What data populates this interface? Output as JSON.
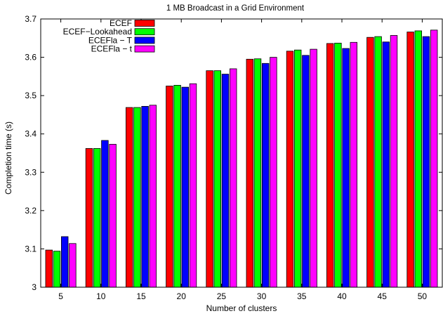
{
  "chart_data": {
    "type": "bar",
    "title": "1 MB Broadcast in a Grid Environment",
    "xlabel": "Number of clusters",
    "ylabel": "Completion time (s)",
    "ylim": [
      3.0,
      3.7
    ],
    "yticks": [
      "3",
      "3.1",
      "3.2",
      "3.3",
      "3.4",
      "3.5",
      "3.6",
      "3.7"
    ],
    "categories": [
      "5",
      "10",
      "15",
      "20",
      "25",
      "30",
      "35",
      "40",
      "45",
      "50"
    ],
    "legend_position": "top-left",
    "series": [
      {
        "name": "ECEF",
        "color": "#ff0000",
        "values": [
          3.097,
          3.362,
          3.469,
          3.525,
          3.565,
          3.595,
          3.616,
          3.636,
          3.652,
          3.666
        ]
      },
      {
        "name": "ECEF−Lookahead",
        "color": "#00ff00",
        "values": [
          3.094,
          3.362,
          3.469,
          3.527,
          3.565,
          3.596,
          3.619,
          3.637,
          3.654,
          3.669
        ]
      },
      {
        "name": "ECEFla − T",
        "color": "#0000ff",
        "values": [
          3.132,
          3.383,
          3.472,
          3.522,
          3.556,
          3.584,
          3.605,
          3.623,
          3.64,
          3.654
        ]
      },
      {
        "name": "ECEFla − t",
        "color": "#ff00ff",
        "values": [
          3.114,
          3.373,
          3.475,
          3.531,
          3.57,
          3.6,
          3.621,
          3.639,
          3.657,
          3.671
        ]
      }
    ]
  }
}
